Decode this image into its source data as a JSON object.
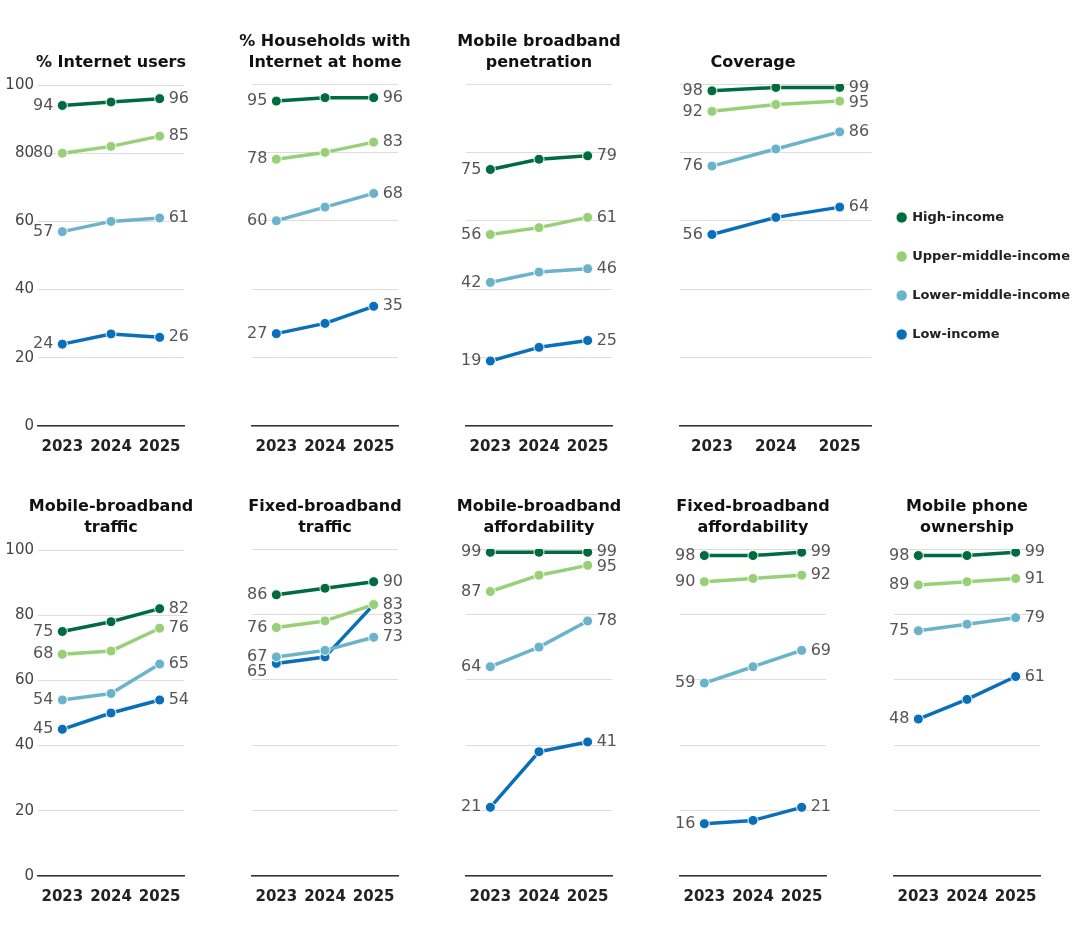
{
  "chart_data": [
    {
      "type": "line",
      "title": "% Internet users",
      "categories": [
        "2023",
        "2024",
        "2025"
      ],
      "ylim": [
        0,
        100
      ],
      "yticks": [
        0,
        20,
        40,
        60,
        80,
        100
      ],
      "grid": "y",
      "marker": "circle",
      "series": [
        {
          "color": "#006b3f",
          "values": [
            94,
            95,
            96
          ],
          "value_labels": [
            "94",
            null,
            "96"
          ]
        },
        {
          "color": "#97d077",
          "values": [
            80,
            82,
            85
          ],
          "value_labels": [
            "80",
            null,
            "85"
          ]
        },
        {
          "color": "#6ab3cb",
          "values": [
            57,
            60,
            61
          ],
          "value_labels": [
            "57",
            null,
            "61"
          ]
        },
        {
          "color": "#0a6fba",
          "values": [
            24,
            27,
            26
          ],
          "value_labels": [
            "24",
            null,
            "26"
          ]
        }
      ]
    },
    {
      "type": "line",
      "title": "% Households with Internet at home",
      "categories": [
        "2023",
        "2024",
        "2025"
      ],
      "ylim": [
        0,
        100
      ],
      "yticks": [
        0,
        20,
        40,
        60,
        80,
        100
      ],
      "grid": "y",
      "marker": "circle",
      "tick_labels": "x",
      "series": [
        {
          "color": "#006b3f",
          "values": [
            95,
            96,
            96
          ],
          "value_labels": [
            "95",
            null,
            "96"
          ]
        },
        {
          "color": "#97d077",
          "values": [
            78,
            80,
            83
          ],
          "value_labels": [
            "78",
            null,
            "83"
          ]
        },
        {
          "color": "#6ab3cb",
          "values": [
            60,
            64,
            68
          ],
          "value_labels": [
            "60",
            null,
            "68"
          ]
        },
        {
          "color": "#0a6fba",
          "values": [
            27,
            30,
            35
          ],
          "value_labels": [
            "27",
            null,
            "35"
          ]
        }
      ]
    },
    {
      "type": "line",
      "title": "Mobile broadband penetration",
      "categories": [
        "2023",
        "2024",
        "2025"
      ],
      "ylim": [
        0,
        100
      ],
      "yticks": [
        0,
        20,
        40,
        60,
        80,
        100
      ],
      "grid": "y",
      "marker": "circle",
      "tick_labels": "x",
      "series": [
        {
          "color": "#006b3f",
          "values": [
            75,
            78,
            79
          ],
          "value_labels": [
            "75",
            null,
            "79"
          ]
        },
        {
          "color": "#97d077",
          "values": [
            56,
            58,
            61
          ],
          "value_labels": [
            "56",
            null,
            "61"
          ]
        },
        {
          "color": "#6ab3cb",
          "values": [
            42,
            45,
            46
          ],
          "value_labels": [
            "42",
            null,
            "46"
          ]
        },
        {
          "color": "#0a6fba",
          "values": [
            19,
            23,
            25
          ],
          "value_labels": [
            "19",
            null,
            "25"
          ]
        }
      ]
    },
    {
      "type": "line",
      "title": "Coverage",
      "categories": [
        "2023",
        "2024",
        "2025"
      ],
      "ylim": [
        0,
        100
      ],
      "yticks": [
        0,
        20,
        40,
        60,
        80,
        100
      ],
      "grid": "y",
      "marker": "circle",
      "tick_labels": "x",
      "legend": "right",
      "series": [
        {
          "name": "High-income",
          "color": "#006b3f",
          "values": [
            98,
            99,
            99
          ],
          "value_labels": [
            "98",
            null,
            "99"
          ]
        },
        {
          "name": "Upper-middle-income",
          "color": "#97d077",
          "values": [
            92,
            94,
            95
          ],
          "value_labels": [
            "92",
            null,
            "95"
          ]
        },
        {
          "name": "Lower-middle-income",
          "color": "#6ab3cb",
          "values": [
            76,
            81,
            86
          ],
          "value_labels": [
            "76",
            null,
            "86"
          ]
        },
        {
          "name": "Low-income",
          "color": "#0a6fba",
          "values": [
            56,
            61,
            64
          ],
          "value_labels": [
            "56",
            null,
            "64"
          ]
        }
      ]
    },
    {
      "type": "line",
      "title": "Mobile-broadband traffic",
      "categories": [
        "2023",
        "2024",
        "2025"
      ],
      "ylim": [
        0,
        100
      ],
      "yticks": [
        0,
        20,
        40,
        60,
        80,
        100
      ],
      "grid": "y",
      "marker": "circle",
      "series": [
        {
          "color": "#006b3f",
          "values": [
            75,
            78,
            82
          ],
          "value_labels": [
            "75",
            null,
            "82"
          ]
        },
        {
          "color": "#97d077",
          "values": [
            68,
            69,
            76
          ],
          "value_labels": [
            "68",
            null,
            "76"
          ]
        },
        {
          "color": "#6ab3cb",
          "values": [
            54,
            56,
            65
          ],
          "value_labels": [
            "54",
            null,
            "65"
          ]
        },
        {
          "color": "#0a6fba",
          "values": [
            45,
            50,
            54
          ],
          "value_labels": [
            "45",
            null,
            "54"
          ]
        }
      ]
    },
    {
      "type": "line",
      "title": "Fixed-broadband traffic",
      "categories": [
        "2023",
        "2024",
        "2025"
      ],
      "ylim": [
        0,
        100
      ],
      "yticks": [
        0,
        20,
        40,
        60,
        80,
        100
      ],
      "grid": "y",
      "marker": "circle",
      "tick_labels": "x",
      "series": [
        {
          "color": "#006b3f",
          "values": [
            86,
            88,
            90
          ],
          "value_labels": [
            "86",
            null,
            "90"
          ]
        },
        {
          "color": "#97d077",
          "values": [
            76,
            78,
            83
          ],
          "value_labels": [
            "76",
            null,
            "83"
          ]
        },
        {
          "color": "#6ab3cb",
          "values": [
            67,
            69,
            73
          ],
          "value_labels": [
            "67",
            null,
            "73"
          ]
        },
        {
          "color": "#0a6fba",
          "values": [
            65,
            67,
            83
          ],
          "value_labels": [
            "65",
            null,
            "83"
          ]
        }
      ]
    },
    {
      "type": "line",
      "title": "Mobile-broadband affordability",
      "categories": [
        "2023",
        "2024",
        "2025"
      ],
      "ylim": [
        0,
        100
      ],
      "yticks": [
        0,
        20,
        40,
        60,
        80,
        100
      ],
      "grid": "y",
      "marker": "circle",
      "tick_labels": "x",
      "series": [
        {
          "color": "#006b3f",
          "values": [
            99,
            99,
            99
          ],
          "value_labels": [
            "99",
            null,
            "99"
          ]
        },
        {
          "color": "#97d077",
          "values": [
            87,
            92,
            95
          ],
          "value_labels": [
            "87",
            null,
            "95"
          ]
        },
        {
          "color": "#6ab3cb",
          "values": [
            64,
            70,
            78
          ],
          "value_labels": [
            "64",
            null,
            "78"
          ]
        },
        {
          "color": "#0a6fba",
          "values": [
            21,
            38,
            41
          ],
          "value_labels": [
            "21",
            null,
            "41"
          ]
        }
      ]
    },
    {
      "type": "line",
      "title": "Fixed-broadband affordability",
      "categories": [
        "2023",
        "2024",
        "2025"
      ],
      "ylim": [
        0,
        100
      ],
      "yticks": [
        0,
        20,
        40,
        60,
        80,
        100
      ],
      "grid": "y",
      "marker": "circle",
      "tick_labels": "x",
      "series": [
        {
          "color": "#006b3f",
          "values": [
            98,
            98,
            99
          ],
          "value_labels": [
            "98",
            null,
            "99"
          ]
        },
        {
          "color": "#97d077",
          "values": [
            90,
            91,
            92
          ],
          "value_labels": [
            "90",
            null,
            "92"
          ]
        },
        {
          "color": "#6ab3cb",
          "values": [
            59,
            64,
            69
          ],
          "value_labels": [
            "59",
            null,
            "69"
          ]
        },
        {
          "color": "#0a6fba",
          "values": [
            16,
            17,
            21
          ],
          "value_labels": [
            "16",
            null,
            "21"
          ]
        }
      ]
    },
    {
      "type": "line",
      "title": "Mobile phone ownership",
      "categories": [
        "2023",
        "2024",
        "2025"
      ],
      "ylim": [
        0,
        100
      ],
      "yticks": [
        0,
        20,
        40,
        60,
        80,
        100
      ],
      "grid": "y",
      "marker": "circle",
      "tick_labels": "x",
      "series": [
        {
          "color": "#006b3f",
          "values": [
            98,
            98,
            99
          ],
          "value_labels": [
            "98",
            null,
            "99"
          ]
        },
        {
          "color": "#97d077",
          "values": [
            89,
            90,
            91
          ],
          "value_labels": [
            "89",
            null,
            "91"
          ]
        },
        {
          "color": "#6ab3cb",
          "values": [
            75,
            77,
            79
          ],
          "value_labels": [
            "75",
            null,
            "79"
          ]
        },
        {
          "color": "#0a6fba",
          "values": [
            48,
            54,
            61
          ],
          "value_labels": [
            "48",
            null,
            "61"
          ]
        }
      ]
    }
  ]
}
